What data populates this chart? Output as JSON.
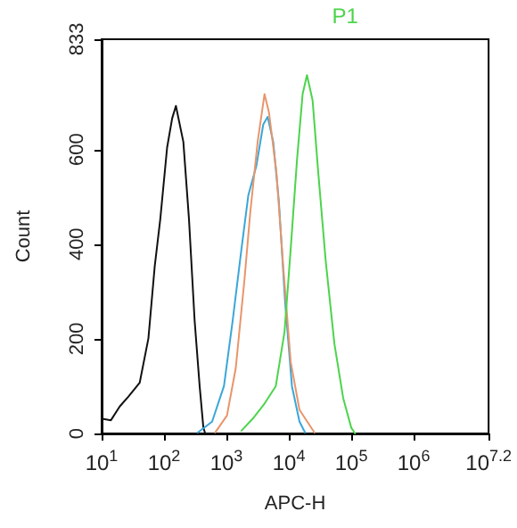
{
  "chart_data": {
    "type": "line",
    "xlabel": "APC-H",
    "ylabel": "Count",
    "log": "x",
    "xlim": [
      10,
      15848932
    ],
    "xticks": [
      {
        "value": 10,
        "label": "10$^{1}$"
      },
      {
        "value": 100,
        "label": "10$^{2}$"
      },
      {
        "value": 1000,
        "label": "10$^{3}$"
      },
      {
        "value": 10000,
        "label": "10$^{4}$"
      },
      {
        "value": 100000,
        "label": "10$^{5}$"
      },
      {
        "value": 1000000,
        "label": "10$^{6}$"
      },
      {
        "value": 15848932,
        "label": "10$^{7.2}$"
      }
    ],
    "ylim": [
      0,
      833
    ],
    "yticks": [
      0,
      200,
      400,
      600,
      833
    ],
    "grid": false,
    "legend": false,
    "marker": "none",
    "line_style": "solid",
    "series": [
      {
        "color": "#111111",
        "x": [
          10.2,
          14.1,
          19.5,
          26.9,
          40.7,
          56.2,
          70.8,
          87.1,
          112,
          135,
          155,
          204,
          251,
          309,
          372,
          427,
          457
        ],
        "values": [
          31,
          28,
          57,
          78,
          107,
          201,
          352,
          453,
          604,
          666,
          692,
          616,
          453,
          239,
          100,
          12,
          0
        ]
      },
      {
        "color": "#3aa6d8",
        "x": [
          347,
          589,
          912,
          1260,
          1740,
          2240,
          3020,
          3890,
          4570,
          5620,
          6920,
          8710,
          11200,
          14800,
          18200
        ],
        "values": [
          2,
          25,
          100,
          239,
          390,
          503,
          566,
          653,
          669,
          616,
          490,
          277,
          100,
          25,
          2
        ]
      },
      {
        "color": "#e8956a",
        "x": [
          661,
          1020,
          1410,
          1950,
          2400,
          3160,
          4070,
          4790,
          6310,
          8130,
          10700,
          14800,
          25700
        ],
        "values": [
          2,
          38,
          138,
          327,
          465,
          616,
          717,
          679,
          553,
          352,
          151,
          50,
          2
        ]
      },
      {
        "name": "P1",
        "color": "#4cd44c",
        "x": [
          1740,
          2630,
          4070,
          6170,
          8510,
          10700,
          13500,
          16600,
          19500,
          24000,
          29500,
          38900,
          53700,
          74100,
          100000,
          115000
        ],
        "values": [
          6,
          31,
          63,
          100,
          214,
          390,
          578,
          717,
          757,
          704,
          553,
          365,
          189,
          75,
          12,
          0
        ]
      }
    ]
  }
}
